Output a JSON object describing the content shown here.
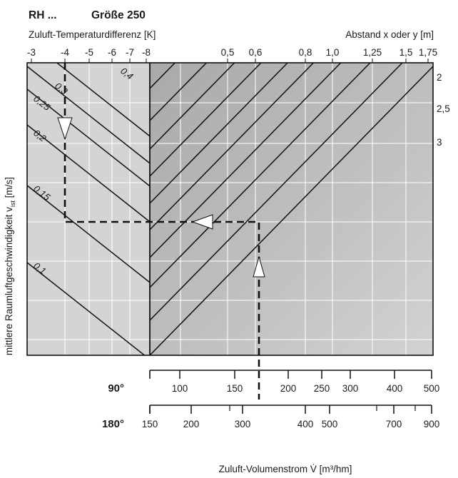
{
  "chart_data": {
    "type": "line",
    "title": "RH ...",
    "subtitle": "Größe 250",
    "left_top_axis": {
      "label": "Zuluft-Temperaturdifferenz [K]",
      "ticks": [
        "-3",
        "-4",
        "-5",
        "-6",
        "-7",
        "-8"
      ]
    },
    "right_top_axis": {
      "label": "Abstand x oder y [m]",
      "ticks": [
        "0,5",
        "0,6",
        "0,8",
        "1,0",
        "1,25",
        "1,5",
        "1,75"
      ]
    },
    "right_side_labels": [
      "2",
      "2,5",
      "3"
    ],
    "ylabel_main": "mittlere Raumluftgeschwindigkeit v",
    "ylabel_sub": "ist",
    "ylabel_unit": " [m/s]",
    "velocity_series": [
      {
        "name": "0,1"
      },
      {
        "name": "0,15"
      },
      {
        "name": "0,2"
      },
      {
        "name": "0,25"
      },
      {
        "name": "0,3"
      },
      {
        "name": "0,4"
      }
    ],
    "bottom_scales": [
      {
        "name": "90°",
        "ticks": [
          "100",
          "150",
          "200",
          "250",
          "300",
          "400",
          "500"
        ]
      },
      {
        "name": "180°",
        "ticks": [
          "150",
          "200",
          "300",
          "400",
          "500",
          "700",
          "900"
        ]
      }
    ],
    "xlabel": "Zuluft-Volumenstrom V̇ [m³/hm]",
    "example": {
      "temperature_difference": "-4",
      "volume_flow_180": "300",
      "distance": "0,6"
    },
    "colors": {
      "left_panel": "#d4d4d4",
      "right_panel_dark": "#a9a9a9",
      "right_panel_light": "#d2d2d2",
      "lines": "#111111",
      "grid": "#ffffff"
    }
  }
}
